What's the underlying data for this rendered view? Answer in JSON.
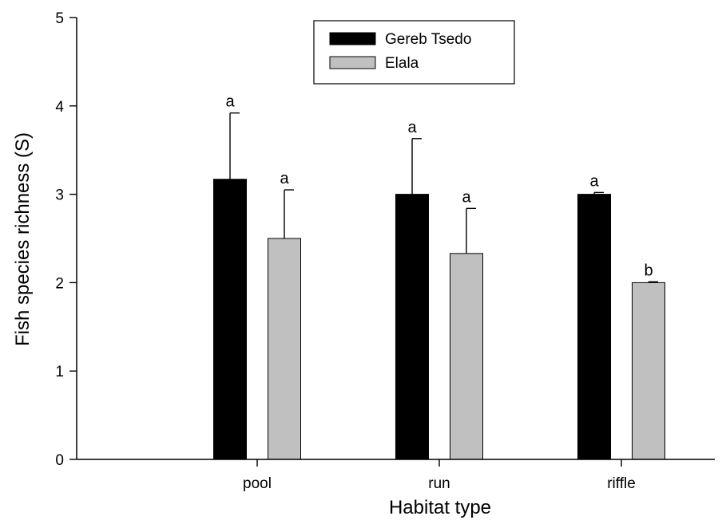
{
  "chart_data": {
    "type": "bar",
    "title": "",
    "xlabel": "Habitat type",
    "ylabel": "Fish species richness (S)",
    "categories": [
      "pool",
      "run",
      "riffle"
    ],
    "ylim": [
      0,
      5
    ],
    "yticks": [
      "0",
      "1",
      "2",
      "3",
      "4",
      "5"
    ],
    "grid": false,
    "legend_position": "top-center",
    "series": [
      {
        "name": "Gereb Tsedo",
        "color": "#000000",
        "values": [
          3.17,
          3.0,
          3.0
        ],
        "errors": [
          0.75,
          0.63,
          0.02
        ],
        "significance": [
          "a",
          "a",
          "a"
        ]
      },
      {
        "name": "Elala",
        "color": "#c0c0c0",
        "values": [
          2.5,
          2.33,
          2.0
        ],
        "errors": [
          0.55,
          0.51,
          0.01
        ],
        "significance": [
          "a",
          "a",
          "b"
        ]
      }
    ]
  }
}
